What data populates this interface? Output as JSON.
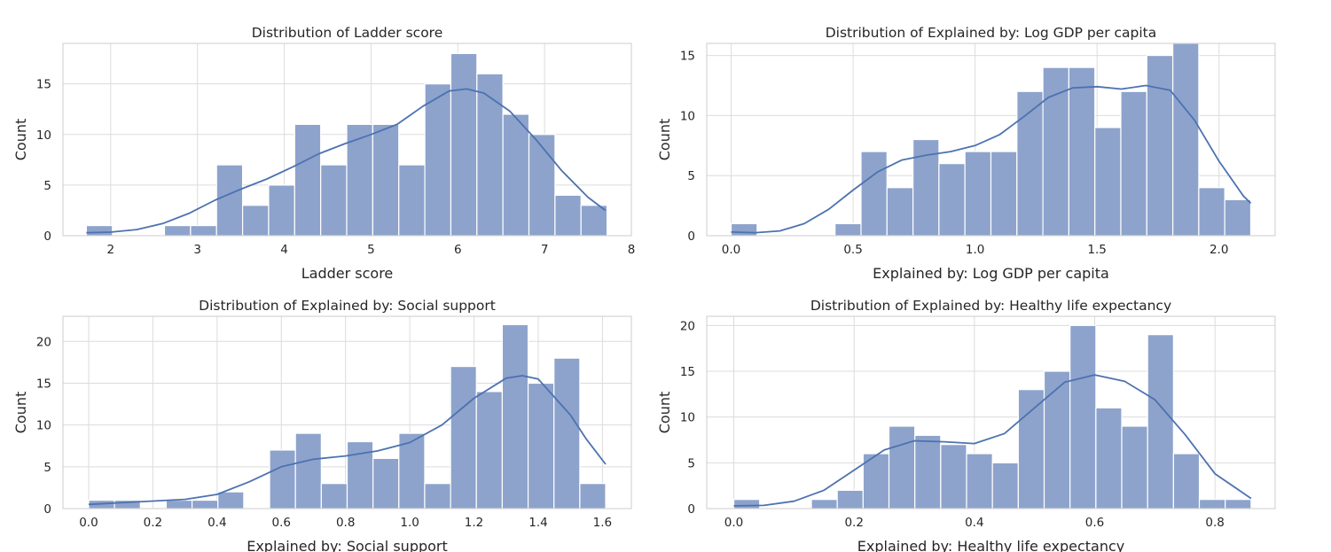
{
  "colors": {
    "bar_fill": "#8da3cc",
    "bar_stroke": "#ffffff",
    "kde_line": "#4c72b0",
    "grid": "#dcdcdc",
    "axes_edge": "#cccccc",
    "text": "#262626"
  },
  "chart_data": [
    {
      "type": "bar",
      "subtype": "histogram_with_kde",
      "title": "Distribution of Ladder score",
      "xlabel": "Ladder score",
      "ylabel": "Count",
      "xlim": [
        1.45,
        8.0
      ],
      "ylim": [
        0,
        19.0
      ],
      "xticks": [
        2,
        3,
        4,
        5,
        6,
        7,
        8
      ],
      "yticks": [
        0,
        5,
        10,
        15
      ],
      "xtick_labels": [
        "2",
        "3",
        "4",
        "5",
        "6",
        "7",
        "8"
      ],
      "ytick_labels": [
        "0",
        "5",
        "10",
        "15"
      ],
      "grid": true,
      "bin_start": 1.72,
      "bin_width": 0.3,
      "counts": [
        1,
        0,
        0,
        1,
        1,
        7,
        3,
        5,
        11,
        7,
        11,
        11,
        7,
        15,
        18,
        16,
        12,
        10,
        4,
        3
      ],
      "kde": {
        "x": [
          1.72,
          2.0,
          2.3,
          2.6,
          2.9,
          3.2,
          3.5,
          3.8,
          4.1,
          4.4,
          4.7,
          5.0,
          5.3,
          5.6,
          5.9,
          6.1,
          6.3,
          6.6,
          6.9,
          7.2,
          7.5,
          7.7
        ],
        "y": [
          0.3,
          0.35,
          0.6,
          1.2,
          2.2,
          3.5,
          4.6,
          5.6,
          6.8,
          8.1,
          9.1,
          10.0,
          11.0,
          12.8,
          14.3,
          14.5,
          14.1,
          12.3,
          9.5,
          6.4,
          3.8,
          2.5
        ]
      }
    },
    {
      "type": "bar",
      "subtype": "histogram_with_kde",
      "title": "Distribution of Explained by: Log GDP per capita",
      "xlabel": "Explained by: Log GDP per capita",
      "ylabel": "Count",
      "xlim": [
        -0.1,
        2.23
      ],
      "ylim": [
        0,
        16.0
      ],
      "xticks": [
        0.0,
        0.5,
        1.0,
        1.5,
        2.0
      ],
      "yticks": [
        0,
        5,
        10,
        15
      ],
      "xtick_labels": [
        "0.0",
        "0.5",
        "1.0",
        "1.5",
        "2.0"
      ],
      "ytick_labels": [
        "0",
        "5",
        "10",
        "15"
      ],
      "grid": true,
      "bin_start": 0.0,
      "bin_width": 0.1065,
      "counts": [
        1,
        0,
        0,
        0,
        1,
        7,
        4,
        8,
        6,
        7,
        7,
        12,
        14,
        14,
        9,
        12,
        15,
        16,
        4,
        3
      ],
      "kde": {
        "x": [
          0.0,
          0.1,
          0.2,
          0.3,
          0.4,
          0.5,
          0.6,
          0.7,
          0.8,
          0.9,
          1.0,
          1.1,
          1.2,
          1.3,
          1.4,
          1.5,
          1.6,
          1.7,
          1.8,
          1.9,
          2.0,
          2.1,
          2.13
        ],
        "y": [
          0.3,
          0.25,
          0.4,
          1.0,
          2.2,
          3.8,
          5.3,
          6.3,
          6.7,
          7.0,
          7.5,
          8.4,
          9.9,
          11.5,
          12.3,
          12.4,
          12.2,
          12.5,
          12.1,
          9.6,
          6.2,
          3.3,
          2.7
        ]
      }
    },
    {
      "type": "bar",
      "subtype": "histogram_with_kde",
      "title": "Distribution of Explained by: Social support",
      "xlabel": "Explained by: Social support",
      "ylabel": "Count",
      "xlim": [
        -0.08,
        1.69
      ],
      "ylim": [
        0,
        23.0
      ],
      "xticks": [
        0.0,
        0.2,
        0.4,
        0.6,
        0.8,
        1.0,
        1.2,
        1.4,
        1.6
      ],
      "yticks": [
        0,
        5,
        10,
        15,
        20
      ],
      "xtick_labels": [
        "0.0",
        "0.2",
        "0.4",
        "0.6",
        "0.8",
        "1.0",
        "1.2",
        "1.4",
        "1.6"
      ],
      "ytick_labels": [
        "0",
        "5",
        "10",
        "15",
        "20"
      ],
      "grid": true,
      "bin_start": 0.0,
      "bin_width": 0.0805,
      "counts": [
        1,
        1,
        0,
        1,
        1,
        2,
        0,
        7,
        9,
        3,
        8,
        6,
        9,
        3,
        17,
        14,
        22,
        15,
        18,
        3
      ],
      "kde": {
        "x": [
          0.0,
          0.1,
          0.2,
          0.3,
          0.4,
          0.5,
          0.6,
          0.7,
          0.8,
          0.9,
          1.0,
          1.1,
          1.2,
          1.3,
          1.35,
          1.4,
          1.5,
          1.55,
          1.61
        ],
        "y": [
          0.5,
          0.7,
          0.9,
          1.1,
          1.7,
          3.2,
          5.0,
          5.9,
          6.3,
          6.9,
          7.9,
          10.0,
          13.2,
          15.6,
          15.9,
          15.5,
          11.2,
          8.3,
          5.3
        ]
      }
    },
    {
      "type": "bar",
      "subtype": "histogram_with_kde",
      "title": "Distribution of Explained by: Healthy life expectancy",
      "xlabel": "Explained by: Healthy life expectancy",
      "ylabel": "Count",
      "xlim": [
        -0.045,
        0.9
      ],
      "ylim": [
        0,
        21.0
      ],
      "xticks": [
        0.0,
        0.2,
        0.4,
        0.6,
        0.8
      ],
      "yticks": [
        0,
        5,
        10,
        15,
        20
      ],
      "xtick_labels": [
        "0.0",
        "0.2",
        "0.4",
        "0.6",
        "0.8"
      ],
      "ytick_labels": [
        "0",
        "5",
        "10",
        "15",
        "20"
      ],
      "grid": true,
      "bin_start": 0.0,
      "bin_width": 0.043,
      "counts": [
        1,
        0,
        0,
        1,
        2,
        6,
        9,
        8,
        7,
        6,
        5,
        13,
        15,
        20,
        11,
        9,
        19,
        6,
        1,
        1
      ],
      "kde": {
        "x": [
          0.0,
          0.05,
          0.1,
          0.15,
          0.2,
          0.25,
          0.3,
          0.35,
          0.4,
          0.45,
          0.5,
          0.55,
          0.6,
          0.65,
          0.7,
          0.75,
          0.8,
          0.86
        ],
        "y": [
          0.3,
          0.35,
          0.8,
          2.0,
          4.2,
          6.4,
          7.4,
          7.3,
          7.1,
          8.2,
          11.0,
          13.8,
          14.6,
          13.9,
          11.9,
          8.1,
          3.8,
          1.1
        ]
      }
    }
  ]
}
